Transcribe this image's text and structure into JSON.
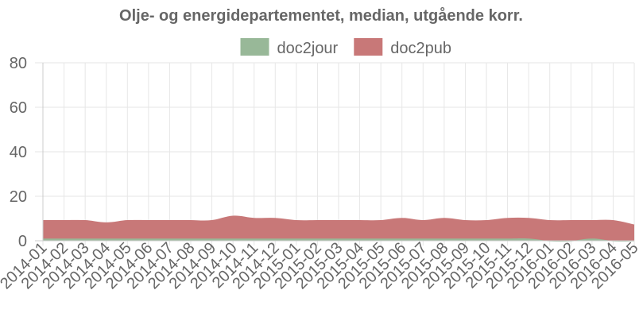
{
  "chart_data": {
    "type": "area",
    "stacked": true,
    "title": "Olje- og energidepartementet, median, utgående korr.",
    "xlabel": "",
    "ylabel": "",
    "ylim": [
      0,
      80
    ],
    "yticks": [
      0,
      20,
      40,
      60,
      80
    ],
    "legend_position": "top",
    "grid": true,
    "categories": [
      "2014-01",
      "2014-02",
      "2014-03",
      "2014-04",
      "2014-05",
      "2014-06",
      "2014-07",
      "2014-08",
      "2014-09",
      "2014-10",
      "2014-11",
      "2014-12",
      "2015-01",
      "2015-02",
      "2015-03",
      "2015-04",
      "2015-05",
      "2015-06",
      "2015-07",
      "2015-08",
      "2015-09",
      "2015-10",
      "2015-11",
      "2015-12",
      "2016-01",
      "2016-02",
      "2016-03",
      "2016-04",
      "2016-05"
    ],
    "series": [
      {
        "name": "doc2jour",
        "color": "#98b898",
        "values": [
          1,
          1,
          1,
          1,
          1,
          1,
          1,
          1,
          1,
          1,
          1,
          1,
          1,
          1,
          1,
          1,
          1,
          1,
          1,
          1,
          1,
          1,
          1,
          1,
          0,
          0,
          1,
          0,
          0
        ]
      },
      {
        "name": "doc2pub",
        "color": "#c87878",
        "values": [
          8,
          8,
          8,
          7,
          8,
          8,
          8,
          8,
          8,
          10,
          9,
          9,
          8,
          8,
          8,
          8,
          8,
          9,
          8,
          9,
          8,
          8,
          9,
          9,
          9,
          9,
          8,
          9,
          7
        ]
      }
    ]
  }
}
